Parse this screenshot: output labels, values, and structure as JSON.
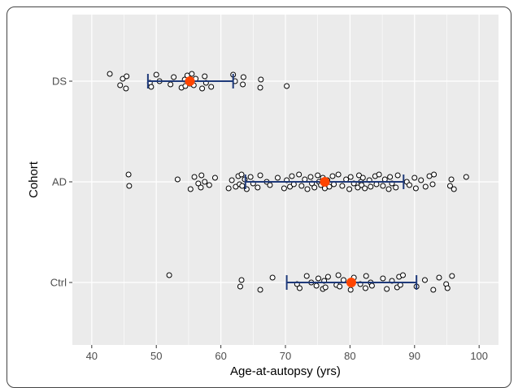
{
  "chart_data": {
    "type": "scatter",
    "title": "",
    "xlabel": "Age-at-autopsy (yrs)",
    "ylabel": "Cohort",
    "xlim": [
      37,
      103
    ],
    "x_ticks": [
      40,
      50,
      60,
      70,
      80,
      90,
      100
    ],
    "x_tick_labels": [
      "40",
      "50",
      "60",
      "70",
      "80",
      "90",
      "100"
    ],
    "categories": [
      "DS",
      "AD",
      "Ctrl"
    ],
    "grid": true,
    "legend": "none",
    "colors": {
      "panel_bg": "#ebebeb",
      "grid": "#ffffff",
      "point_stroke": "#000000",
      "point_fill": "#ffffff",
      "mean_marker": "#ff4500",
      "error_bar": "#1f3a7a"
    },
    "summary": [
      {
        "category": "DS",
        "mean": 55.2,
        "low": 48.7,
        "high": 61.9
      },
      {
        "category": "AD",
        "mean": 76.1,
        "low": 63.8,
        "high": 88.3
      },
      {
        "category": "Ctrl",
        "mean": 80.2,
        "low": 70.2,
        "high": 90.3
      }
    ],
    "points": [
      {
        "category": "DS",
        "values": [
          42.8,
          44.4,
          44.8,
          45.3,
          45.4,
          49.0,
          49.2,
          50.0,
          50.5,
          52.2,
          52.7,
          53.9,
          54.4,
          54.5,
          54.8,
          55.2,
          55.5,
          55.8,
          56.1,
          57.1,
          57.5,
          57.7,
          58.5,
          61.9,
          62.2,
          63.4,
          63.5,
          66.1,
          66.2,
          70.2
        ]
      },
      {
        "category": "AD",
        "values": [
          45.7,
          45.8,
          53.3,
          55.3,
          55.9,
          56.5,
          56.9,
          57.0,
          57.5,
          58.2,
          59.1,
          61.2,
          61.7,
          62.3,
          62.7,
          62.9,
          63.2,
          63.3,
          63.7,
          64.0,
          64.6,
          65.0,
          65.7,
          66.1,
          67.1,
          67.6,
          68.8,
          69.8,
          70.2,
          70.7,
          71.0,
          71.3,
          72.1,
          72.5,
          73.0,
          73.4,
          73.9,
          74.1,
          74.5,
          75.0,
          75.2,
          75.5,
          75.8,
          76.1,
          76.5,
          76.8,
          77.3,
          77.5,
          78.2,
          78.8,
          79.4,
          79.9,
          80.1,
          80.6,
          81.2,
          81.4,
          81.7,
          81.8,
          82.0,
          82.3,
          83.0,
          83.2,
          83.9,
          84.1,
          84.5,
          85.1,
          85.4,
          86.0,
          86.2,
          86.5,
          87.1,
          87.4,
          88.8,
          89.2,
          90.0,
          90.2,
          91.0,
          91.7,
          92.3,
          92.8,
          93.0,
          95.5,
          95.7,
          96.1,
          98.0
        ]
      },
      {
        "category": "Ctrl",
        "values": [
          52.0,
          63.0,
          63.2,
          66.1,
          68.0,
          71.8,
          72.2,
          73.3,
          74.0,
          74.8,
          75.1,
          75.8,
          76.0,
          76.2,
          76.6,
          77.9,
          78.2,
          78.4,
          79.0,
          80.1,
          80.6,
          81.6,
          82.4,
          82.5,
          83.2,
          83.4,
          85.1,
          85.7,
          86.5,
          87.3,
          87.6,
          87.8,
          88.2,
          90.3,
          91.6,
          92.9,
          93.8,
          94.9,
          95.1,
          95.8
        ]
      }
    ]
  }
}
